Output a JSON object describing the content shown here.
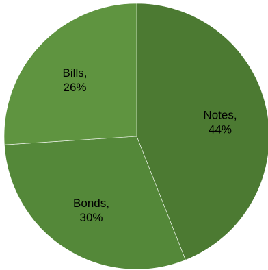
{
  "chart_data": {
    "type": "pie",
    "title": "",
    "start_angle_deg": 0,
    "direction": "clockwise",
    "legend": "none",
    "slices": [
      {
        "name": "Notes",
        "value": 44,
        "label_line1": "Notes,",
        "label_line2": "44%",
        "color": "#4c7a32"
      },
      {
        "name": "Bonds",
        "value": 30,
        "label_line1": "Bonds,",
        "label_line2": "30%",
        "color": "#548839"
      },
      {
        "name": "Bills",
        "value": 26,
        "label_line1": "Bills,",
        "label_line2": "26%",
        "color": "#5f9440"
      }
    ]
  }
}
